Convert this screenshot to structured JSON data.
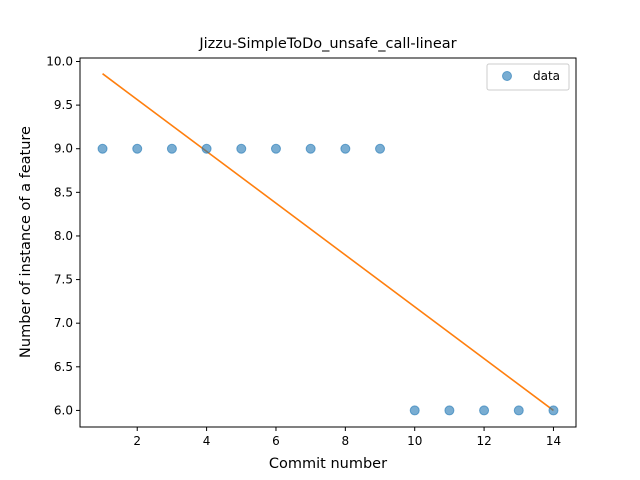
{
  "chart_data": {
    "type": "scatter",
    "title": "Jizzu-SimpleToDo_unsafe_call-linear",
    "xlabel": "Commit number",
    "ylabel": "Number of instance of a feature",
    "xlim": [
      0.35,
      14.65
    ],
    "ylim": [
      5.81,
      10.04
    ],
    "xticks": [
      2,
      4,
      6,
      8,
      10,
      12,
      14
    ],
    "yticks": [
      6.0,
      6.5,
      7.0,
      7.5,
      8.0,
      8.5,
      9.0,
      9.5,
      10.0
    ],
    "grid": false,
    "legend_position": "upper right",
    "series": [
      {
        "name": "data",
        "kind": "scatter",
        "color": "#1f77b4",
        "x": [
          1,
          2,
          3,
          4,
          5,
          6,
          7,
          8,
          9,
          10,
          11,
          12,
          13,
          14
        ],
        "y": [
          9,
          9,
          9,
          9,
          9,
          9,
          9,
          9,
          9,
          6,
          6,
          6,
          6,
          6
        ]
      },
      {
        "kind": "line",
        "color": "#ff7f0e",
        "x": [
          1,
          14
        ],
        "y": [
          9.86,
          6.0
        ]
      }
    ]
  }
}
